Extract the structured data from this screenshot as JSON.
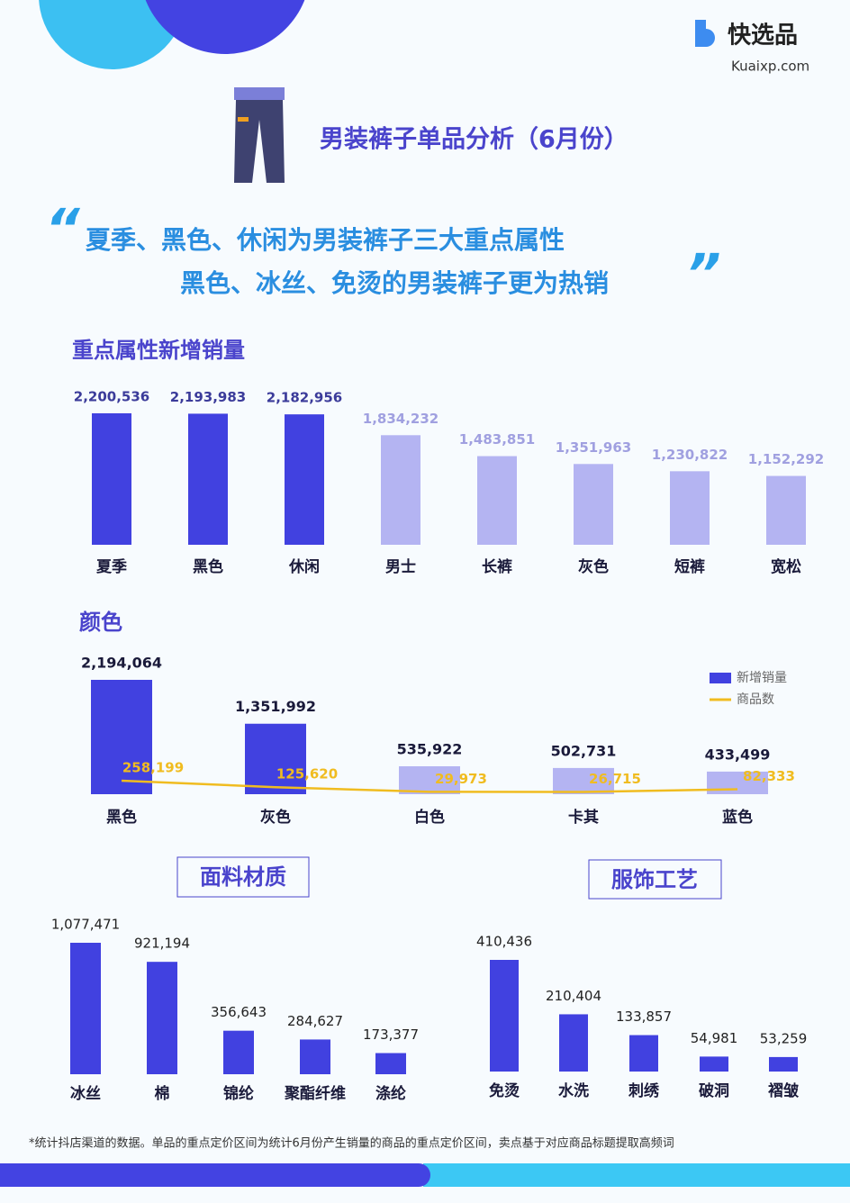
{
  "header": {
    "brand": "快选品",
    "site": "Kuaixp.com",
    "title": "男装裤子单品分析（6月份）",
    "quote_lines": [
      "夏季、黑色、休闲为男装裤子三大重点属性",
      "黑色、冰丝、免烫的男装裤子更为热销"
    ]
  },
  "chart_data": [
    {
      "type": "bar",
      "title": "重点属性新增销量",
      "categories": [
        "夏季",
        "黑色",
        "休闲",
        "男士",
        "长裤",
        "灰色",
        "短裤",
        "宽松"
      ],
      "values": [
        2200536,
        2193983,
        2182956,
        1834232,
        1483851,
        1351963,
        1230822,
        1152292
      ],
      "value_labels": [
        "2,200,536",
        "2,193,983",
        "2,182,956",
        "1,834,232",
        "1,483,851",
        "1,351,963",
        "1,230,822",
        "1,152,292"
      ],
      "colors": [
        "#4141e0",
        "#4141e0",
        "#4141e0",
        "#b4b4f2",
        "#b4b4f2",
        "#b4b4f2",
        "#b4b4f2",
        "#b4b4f2"
      ]
    },
    {
      "type": "bar",
      "title": "颜色",
      "categories": [
        "黑色",
        "灰色",
        "白色",
        "卡其",
        "蓝色"
      ],
      "legend": "right",
      "series": [
        {
          "name": "新增销量",
          "color": "#4141e0",
          "colors": [
            "#4141e0",
            "#4141e0",
            "#b4b4f2",
            "#b4b4f2",
            "#b4b4f2"
          ],
          "values": [
            2194064,
            1351992,
            535922,
            502731,
            433499
          ],
          "value_labels": [
            "2,194,064",
            "1,351,992",
            "535,922",
            "502,731",
            "433,499"
          ]
        },
        {
          "name": "商品数",
          "color": "#f0bc20",
          "axis": "y2",
          "values": [
            258199,
            125620,
            29973,
            26715,
            82333
          ],
          "value_labels": [
            "258,199",
            "125,620",
            "29,973",
            "26,715",
            "82,333"
          ]
        }
      ]
    },
    {
      "type": "bar",
      "title": "面料材质",
      "categories": [
        "冰丝",
        "棉",
        "锦纶",
        "聚酯纤维",
        "涤纶"
      ],
      "color": "#4141e0",
      "values": [
        1077471,
        921194,
        356643,
        284627,
        173377
      ],
      "value_labels": [
        "1,077,471",
        "921,194",
        "356,643",
        "284,627",
        "173,377"
      ]
    },
    {
      "type": "bar",
      "title": "服饰工艺",
      "categories": [
        "免烫",
        "水洗",
        "刺绣",
        "破洞",
        "褶皱"
      ],
      "color": "#4141e0",
      "values": [
        410436,
        210404,
        133857,
        54981,
        53259
      ],
      "value_labels": [
        "410,436",
        "210,404",
        "133,857",
        "54,981",
        "53,259"
      ]
    }
  ],
  "footnote": "*统计抖店渠道的数据。单品的重点定价区间为统计6月份产生销量的商品的重点定价区间，卖点基于对应商品标题提取高频词"
}
